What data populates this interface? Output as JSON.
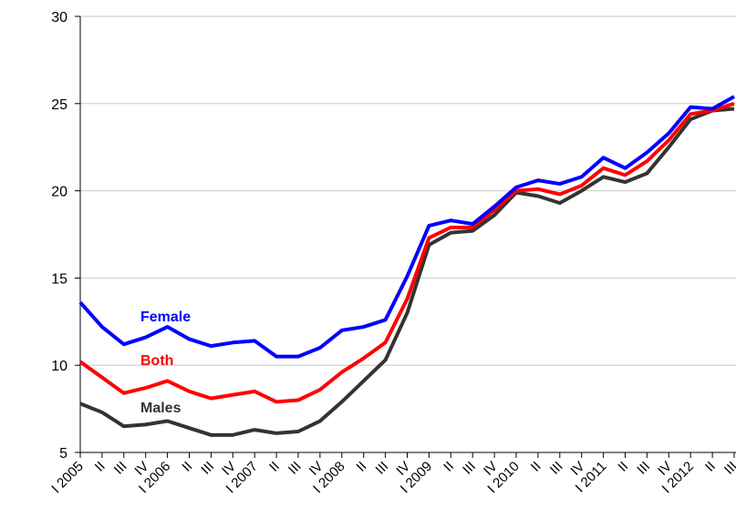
{
  "chart_data": {
    "type": "line",
    "categories": [
      "I 2005",
      "II",
      "III",
      "IV",
      "I 2006",
      "II",
      "III",
      "IV",
      "I 2007",
      "II",
      "III",
      "IV",
      "I 2008",
      "II",
      "III",
      "IV",
      "I 2009",
      "II",
      "III",
      "IV",
      "I 2010",
      "II",
      "III",
      "IV",
      "I 2011",
      "II",
      "III",
      "IV",
      "I 2012",
      "II",
      "III"
    ],
    "series": [
      {
        "name": "Female",
        "color": "#0000ff",
        "values": [
          13.6,
          12.2,
          11.2,
          11.6,
          12.2,
          11.5,
          11.1,
          11.3,
          11.4,
          10.5,
          10.5,
          11.0,
          12.0,
          12.2,
          12.6,
          15.1,
          18.0,
          18.3,
          18.1,
          19.1,
          20.2,
          20.6,
          20.4,
          20.8,
          21.9,
          21.3,
          22.2,
          23.3,
          24.8,
          24.7,
          25.4
        ]
      },
      {
        "name": "Both",
        "color": "#ff0000",
        "values": [
          10.2,
          9.3,
          8.4,
          8.7,
          9.1,
          8.5,
          8.1,
          8.3,
          8.5,
          7.9,
          8.0,
          8.6,
          9.6,
          10.4,
          11.3,
          13.8,
          17.3,
          17.9,
          17.9,
          18.9,
          20.0,
          20.1,
          19.8,
          20.3,
          21.3,
          20.9,
          21.7,
          22.9,
          24.4,
          24.6,
          25.0
        ]
      },
      {
        "name": "Males",
        "color": "#333333",
        "values": [
          7.8,
          7.3,
          6.5,
          6.6,
          6.8,
          6.4,
          6.0,
          6.0,
          6.3,
          6.1,
          6.2,
          6.8,
          7.9,
          9.1,
          10.3,
          13.0,
          16.9,
          17.6,
          17.7,
          18.6,
          19.9,
          19.7,
          19.3,
          20.0,
          20.8,
          20.5,
          21.0,
          22.5,
          24.1,
          24.6,
          24.7
        ]
      }
    ],
    "ylim": [
      5,
      30
    ],
    "yticks": [
      5,
      10,
      15,
      20,
      25,
      30
    ],
    "grid": true
  }
}
